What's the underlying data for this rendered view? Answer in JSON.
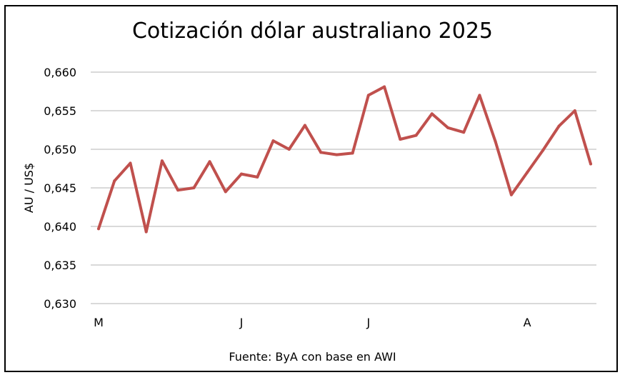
{
  "chart_data": {
    "type": "line",
    "title": "Cotización dólar australiano 2025",
    "ylabel": "AU / US$",
    "xlabel": "",
    "source": "Fuente: ByA con base en AWI",
    "ylim": [
      0.63,
      0.66
    ],
    "yticks": [
      "0,630",
      "0,635",
      "0,640",
      "0,645",
      "0,650",
      "0,655",
      "0,660"
    ],
    "ytick_values": [
      0.63,
      0.635,
      0.64,
      0.645,
      0.65,
      0.655,
      0.66
    ],
    "grid": true,
    "legend": "none",
    "line_color": "#c0504d",
    "xtick_labels": [
      {
        "label": "M",
        "index": 0
      },
      {
        "label": "J",
        "index": 9
      },
      {
        "label": "J",
        "index": 17
      },
      {
        "label": "A",
        "index": 27
      }
    ],
    "series": [
      {
        "values": [
          0.6397,
          0.6459,
          0.6482,
          0.6393,
          0.6485,
          0.6447,
          0.645,
          0.6484,
          0.6445,
          0.6468,
          0.6464,
          0.6511,
          0.65,
          0.6531,
          0.6496,
          0.6493,
          0.6495,
          0.657,
          0.6581,
          0.6513,
          0.6518,
          0.6546,
          0.6528,
          0.6522,
          0.657,
          0.651,
          0.6441,
          0.647,
          0.6499,
          0.653,
          0.655,
          0.6481
        ]
      }
    ]
  }
}
